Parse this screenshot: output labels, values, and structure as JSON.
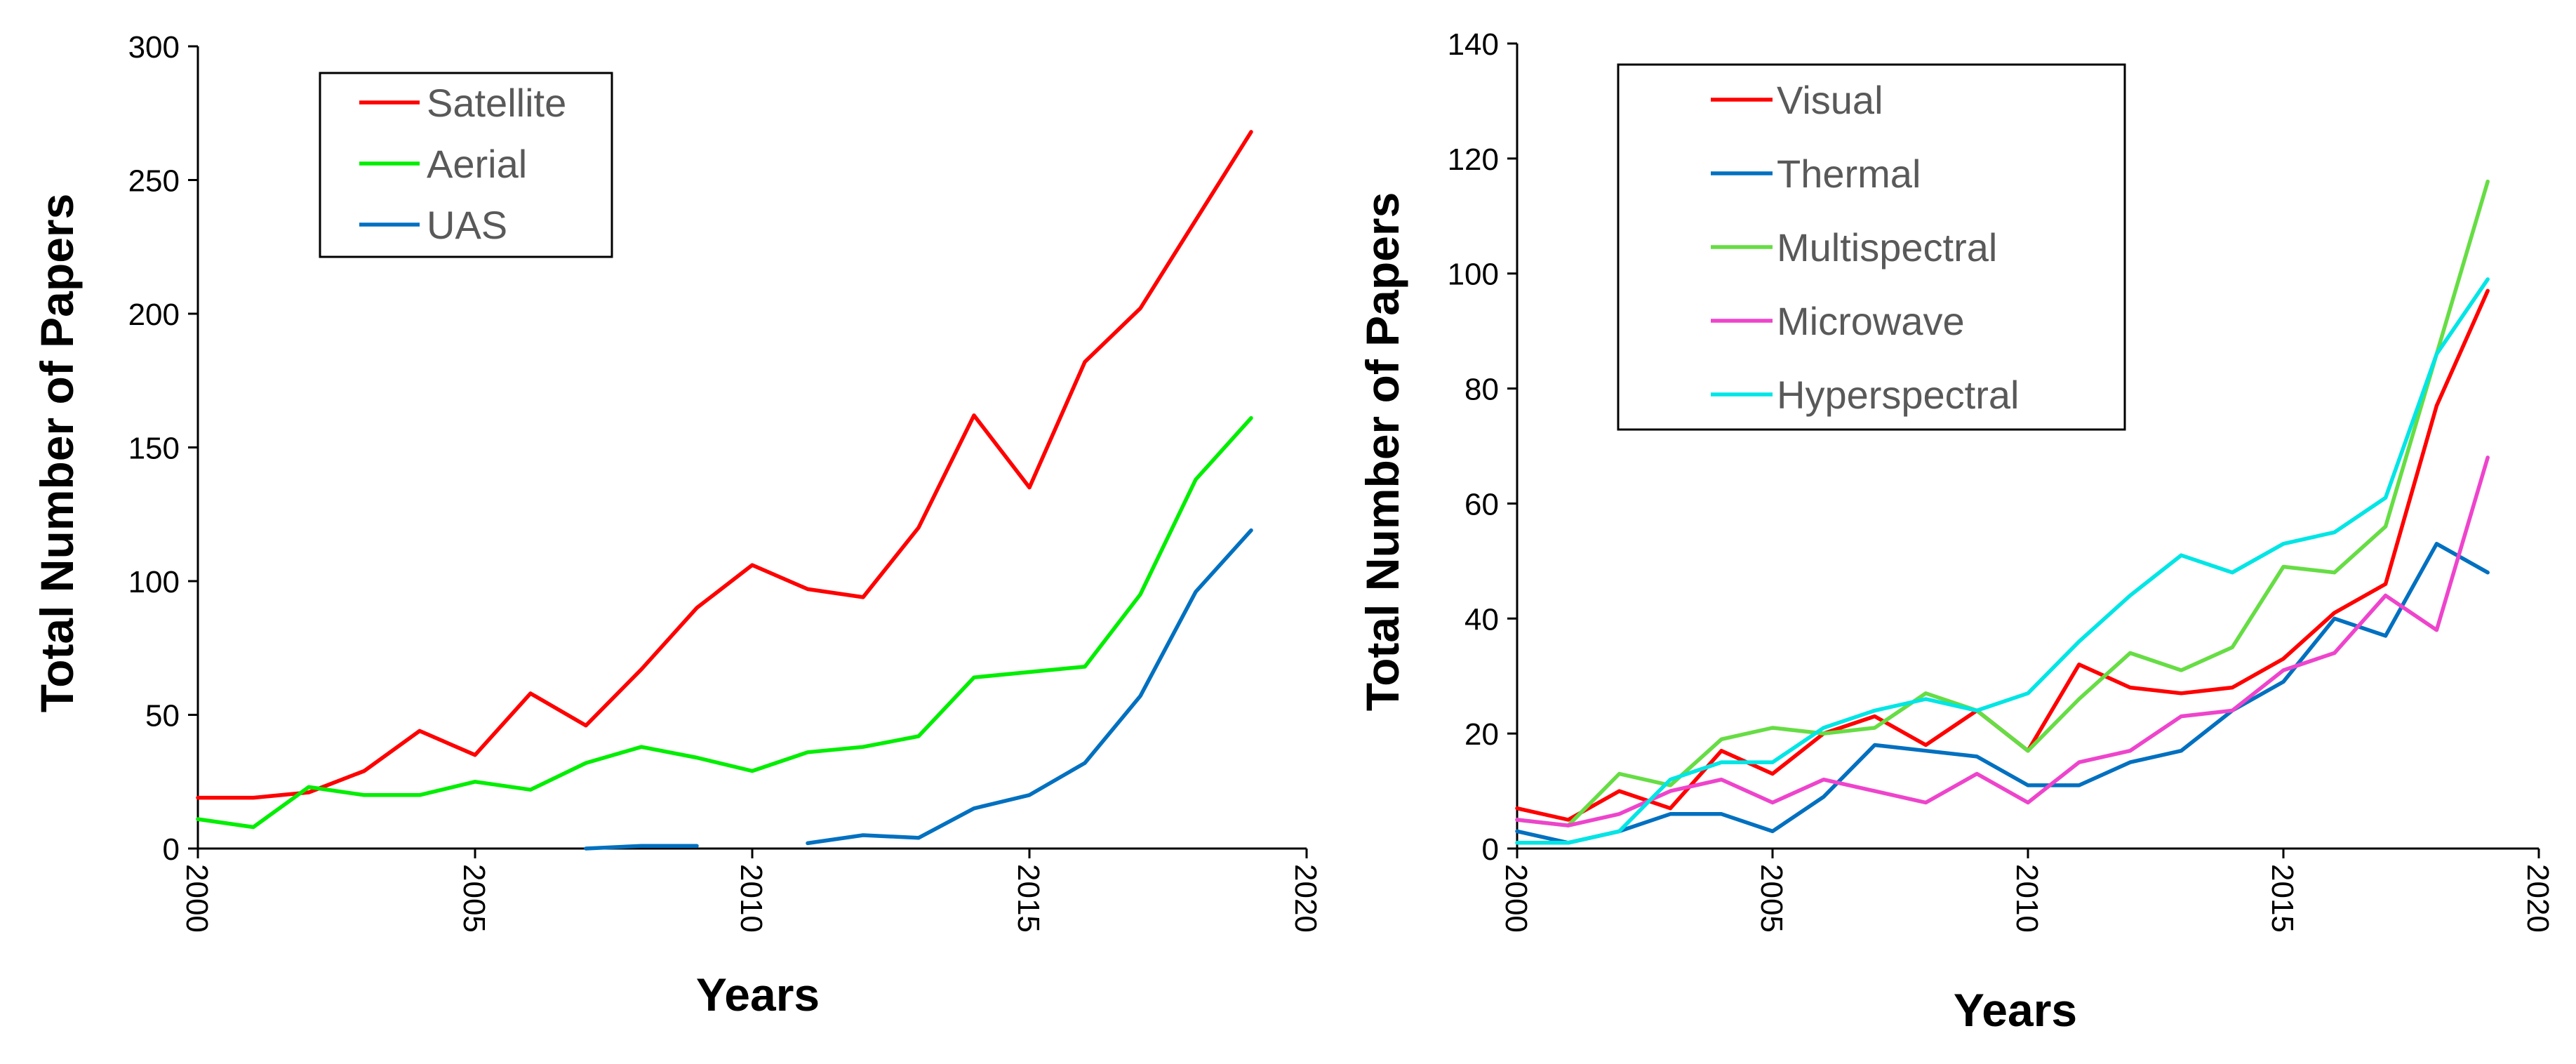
{
  "chart_data": [
    {
      "type": "line",
      "title": "",
      "xlabel": "Years",
      "ylabel": "Total Number of Papers",
      "xlim": [
        2000,
        2020
      ],
      "ylim": [
        0,
        300
      ],
      "xticks": [
        2000,
        2005,
        2010,
        2015,
        2020
      ],
      "yticks": [
        0,
        50,
        100,
        150,
        200,
        250,
        300
      ],
      "x_tick_labels": [
        "2000",
        "2005",
        "2010",
        "2015",
        "2020"
      ],
      "y_tick_labels": [
        "0",
        "50",
        "100",
        "150",
        "200",
        "250",
        "300"
      ],
      "grid": false,
      "legend_position": "top-left",
      "series": [
        {
          "name": "Satellite",
          "color": "#ff0000",
          "x": [
            2000,
            2001,
            2002,
            2003,
            2004,
            2005,
            2006,
            2007,
            2008,
            2009,
            2010,
            2011,
            2012,
            2013,
            2014,
            2015,
            2016,
            2017,
            2018,
            2019
          ],
          "values": [
            19,
            19,
            21,
            29,
            44,
            35,
            58,
            46,
            67,
            90,
            106,
            97,
            94,
            120,
            162,
            135,
            182,
            202,
            235,
            268
          ]
        },
        {
          "name": "Aerial",
          "color": "#00ee00",
          "x": [
            2000,
            2001,
            2002,
            2003,
            2004,
            2005,
            2006,
            2007,
            2008,
            2009,
            2010,
            2011,
            2012,
            2013,
            2014,
            2015,
            2016,
            2017,
            2018,
            2019
          ],
          "values": [
            11,
            8,
            23,
            20,
            20,
            25,
            22,
            32,
            38,
            34,
            29,
            36,
            38,
            42,
            64,
            66,
            68,
            95,
            138,
            161
          ]
        },
        {
          "name": "UAS",
          "color": "#0070c0",
          "x": [
            2000,
            2001,
            2002,
            2003,
            2004,
            2005,
            2006,
            2007,
            2008,
            2009,
            2010,
            2011,
            2012,
            2013,
            2014,
            2015,
            2016,
            2017,
            2018,
            2019
          ],
          "values": [
            null,
            null,
            null,
            null,
            null,
            null,
            null,
            0,
            1,
            1,
            null,
            2,
            5,
            4,
            15,
            20,
            32,
            57,
            96,
            119
          ]
        }
      ]
    },
    {
      "type": "line",
      "title": "",
      "xlabel": "Years",
      "ylabel": "Total Number of Papers",
      "xlim": [
        2000,
        2020
      ],
      "ylim": [
        0,
        140
      ],
      "xticks": [
        2000,
        2005,
        2010,
        2015,
        2020
      ],
      "yticks": [
        0,
        20,
        40,
        60,
        80,
        100,
        120,
        140
      ],
      "x_tick_labels": [
        "2000",
        "2005",
        "2010",
        "2015",
        "2020"
      ],
      "y_tick_labels": [
        "0",
        "20",
        "40",
        "60",
        "80",
        "100",
        "120",
        "140"
      ],
      "grid": false,
      "legend_position": "top-left",
      "series": [
        {
          "name": "Visual",
          "color": "#ff0000",
          "x": [
            2000,
            2001,
            2002,
            2003,
            2004,
            2005,
            2006,
            2007,
            2008,
            2009,
            2010,
            2011,
            2012,
            2013,
            2014,
            2015,
            2016,
            2017,
            2018,
            2019
          ],
          "values": [
            7,
            5,
            10,
            7,
            17,
            13,
            20,
            23,
            18,
            24,
            17,
            32,
            28,
            27,
            28,
            33,
            41,
            46,
            77,
            97
          ]
        },
        {
          "name": "Thermal",
          "color": "#0070c0",
          "x": [
            2000,
            2001,
            2002,
            2003,
            2004,
            2005,
            2006,
            2007,
            2008,
            2009,
            2010,
            2011,
            2012,
            2013,
            2014,
            2015,
            2016,
            2017,
            2018,
            2019
          ],
          "values": [
            3,
            1,
            3,
            6,
            6,
            3,
            9,
            18,
            17,
            16,
            11,
            11,
            15,
            17,
            24,
            29,
            40,
            37,
            53,
            48
          ]
        },
        {
          "name": "Multispectral",
          "color": "#66dd44",
          "x": [
            2000,
            2001,
            2002,
            2003,
            2004,
            2005,
            2006,
            2007,
            2008,
            2009,
            2010,
            2011,
            2012,
            2013,
            2014,
            2015,
            2016,
            2017,
            2018,
            2019
          ],
          "values": [
            5,
            4,
            13,
            11,
            19,
            21,
            20,
            21,
            27,
            24,
            17,
            26,
            34,
            31,
            35,
            49,
            48,
            56,
            86,
            116
          ]
        },
        {
          "name": "Microwave",
          "color": "#ee44cc",
          "x": [
            2000,
            2001,
            2002,
            2003,
            2004,
            2005,
            2006,
            2007,
            2008,
            2009,
            2010,
            2011,
            2012,
            2013,
            2014,
            2015,
            2016,
            2017,
            2018,
            2019
          ],
          "values": [
            5,
            4,
            6,
            10,
            12,
            8,
            12,
            10,
            8,
            13,
            8,
            15,
            17,
            23,
            24,
            31,
            34,
            44,
            38,
            68
          ]
        },
        {
          "name": "Hyperspectral",
          "color": "#00e5e5",
          "x": [
            2000,
            2001,
            2002,
            2003,
            2004,
            2005,
            2006,
            2007,
            2008,
            2009,
            2010,
            2011,
            2012,
            2013,
            2014,
            2015,
            2016,
            2017,
            2018,
            2019
          ],
          "values": [
            1,
            1,
            3,
            12,
            15,
            15,
            21,
            24,
            26,
            24,
            27,
            36,
            44,
            51,
            48,
            53,
            55,
            61,
            86,
            99
          ]
        }
      ]
    }
  ]
}
